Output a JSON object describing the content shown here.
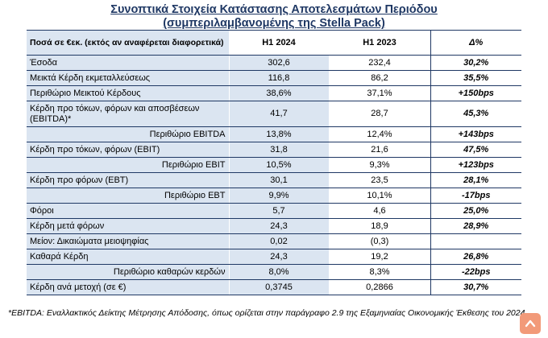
{
  "title": {
    "line1": "Συνοπτικά Στοιχεία Κατάστασης Αποτελεσμάτων Περιόδου",
    "line2": "(συμπεριλαμβανομένης της Stella Pack)"
  },
  "table": {
    "headers": [
      "Ποσά σε €εκ. (εκτός αν αναφέρεται διαφορετικά)",
      "H1 2024",
      "H1 2023",
      "Δ%"
    ],
    "rows": [
      {
        "label": "Έσοδα",
        "h1_2024": "302,6",
        "h1_2023": "232,4",
        "delta": "30,2%"
      },
      {
        "label": "Μεικτά Κέρδη εκμεταλλεύσεως",
        "h1_2024": "116,8",
        "h1_2023": "86,2",
        "delta": "35,5%"
      },
      {
        "label": "Περιθώριο Μεικτού Κέρδους",
        "h1_2024": "38,6%",
        "h1_2023": "37,1%",
        "delta": "+150bps"
      },
      {
        "label": "Κέρδη προ τόκων, φόρων και αποσβέσεων (EBITDA)*",
        "h1_2024": "41,7",
        "h1_2023": "28,7",
        "delta": "45,3%"
      },
      {
        "label": "Περιθώριο EBITDA",
        "h1_2024": "13,8%",
        "h1_2023": "12,4%",
        "delta": "+143bps"
      },
      {
        "label": "Κέρδη προ τόκων, φόρων (EBIT)",
        "h1_2024": "31,8",
        "h1_2023": "21,6",
        "delta": "47,5%"
      },
      {
        "label": "Περιθώριο EBIT",
        "h1_2024": "10,5%",
        "h1_2023": "9,3%",
        "delta": "+123bps"
      },
      {
        "label": "Κέρδη προ φόρων (EBT)",
        "h1_2024": "30,1",
        "h1_2023": "23,5",
        "delta": "28,1%"
      },
      {
        "label": "Περιθώριο EBT",
        "h1_2024": "9,9%",
        "h1_2023": "10,1%",
        "delta": "-17bps"
      },
      {
        "label": "Φόροι",
        "h1_2024": "5,7",
        "h1_2023": "4,6",
        "delta": "25,0%"
      },
      {
        "label": "Κέρδη μετά φόρων",
        "h1_2024": "24,3",
        "h1_2023": "18,9",
        "delta": "28,9%"
      },
      {
        "label": "Μείον: Δικαιώματα μειοψηφίας",
        "h1_2024": "0,02",
        "h1_2023": "(0,3)",
        "delta": ""
      },
      {
        "label": "Καθαρά Κέρδη",
        "h1_2024": "24,3",
        "h1_2023": "19,2",
        "delta": "26,8%"
      },
      {
        "label": "Περιθώριο καθαρών κερδών",
        "h1_2024": "8,0%",
        "h1_2023": "8,3%",
        "delta": "-22bps"
      },
      {
        "label": "Κέρδη ανά μετοχή (σε €)",
        "h1_2024": "0,3745",
        "h1_2023": "0,2866",
        "delta": "30,7%"
      }
    ]
  },
  "footnote": "*EBITDA: Εναλλακτικός Δείκτης Μέτρησης Απόδοσης, όπως ορίζεται στην παράγραφο 2.9 της Εξαμηνιαίας Οικονομικής Έκθεσης του 2024",
  "scroll_button": {
    "icon": "chevron-up-icon",
    "color": "#f29a79"
  }
}
